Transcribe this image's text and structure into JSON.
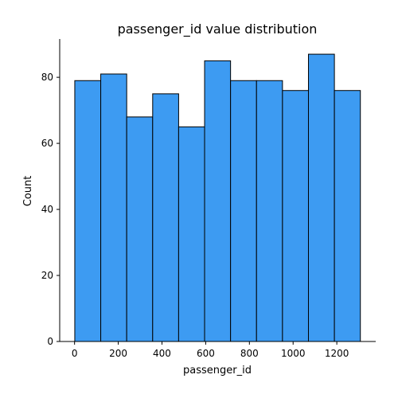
{
  "chart_data": {
    "type": "bar",
    "title": "passenger_id value distribution",
    "xlabel": "passenger_id",
    "ylabel": "Count",
    "bin_edges": [
      1.0,
      119.8,
      238.6,
      357.4,
      476.2,
      595.0,
      713.8,
      832.6,
      951.4,
      1070.2,
      1189.0,
      1307.8
    ],
    "values": [
      79,
      81,
      68,
      75,
      65,
      85,
      79,
      79,
      76,
      87,
      76
    ],
    "xlim": [
      -68,
      1378
    ],
    "ylim": [
      0,
      91.6
    ],
    "xticks": [
      0,
      200,
      400,
      600,
      800,
      1000,
      1200
    ],
    "xtick_labels": [
      "0",
      "200",
      "400",
      "600",
      "800",
      "1000",
      "1200"
    ],
    "yticks": [
      0,
      20,
      40,
      60,
      80
    ],
    "ytick_labels": [
      "0",
      "20",
      "40",
      "60",
      "80"
    ],
    "bar_color": "#3d9bf2",
    "edge_color": "#000000",
    "grid": false,
    "spines": [
      "left",
      "bottom"
    ]
  }
}
